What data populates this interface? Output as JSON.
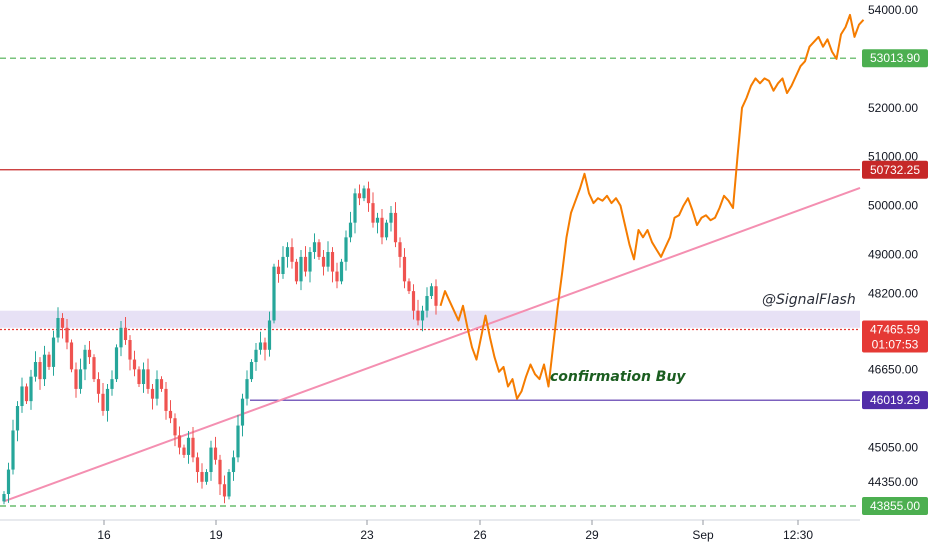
{
  "chart_data": {
    "type": "line",
    "symbol_note": "candlestick price chart with orange projected path",
    "y_axis": {
      "ticks": [
        "54000.00",
        "52000.00",
        "51000.00",
        "50000.00",
        "49000.00",
        "48200.00",
        "46650.00",
        "45050.00",
        "44350.00"
      ],
      "tick_values": [
        54000,
        52000,
        51000,
        50000,
        49000,
        48200,
        46650,
        45050,
        44350
      ],
      "ylim": [
        43800,
        54200
      ]
    },
    "x_axis": {
      "ticks": [
        "16",
        "19",
        "23",
        "26",
        "29",
        "Sep",
        "12:30"
      ]
    },
    "price_levels": [
      {
        "value": 53013.9,
        "label": "53013.90",
        "color": "#4caf50",
        "style": "dashed"
      },
      {
        "value": 50732.25,
        "label": "50732.25",
        "color": "#c62828",
        "style": "solid"
      },
      {
        "value": 47465.59,
        "label": "47465.59",
        "timer": "01:07:53",
        "color": "#e53935",
        "style": "dotted"
      },
      {
        "value": 46019.29,
        "label": "46019.29",
        "color": "#512da8",
        "style": "solid"
      },
      {
        "value": 43855.0,
        "label": "43855.00",
        "color": "#4caf50",
        "style": "dashed"
      }
    ],
    "zone": {
      "y0": 47500,
      "y1": 47850,
      "color": "#e1d9f2"
    },
    "trendline": {
      "color": "#f48fb1",
      "p0": {
        "i": 0,
        "y": 43950
      },
      "p1": {
        "i": 230,
        "y": 51700
      }
    },
    "candles": {
      "seed_closes": [
        44100,
        44600,
        45400,
        45900,
        46300,
        46000,
        46500,
        46800,
        46450,
        46950,
        46700,
        47300,
        47700,
        47500,
        47200,
        46650,
        46250,
        46650,
        47050,
        46900,
        46450,
        46150,
        45800,
        46250,
        46450,
        47100,
        47500,
        47250,
        46850,
        46650,
        46350,
        46650,
        46250,
        46050,
        46450,
        46250,
        45800,
        45650,
        45300,
        45050,
        44900,
        45250,
        44850,
        44550,
        44350,
        44550,
        45050,
        44800,
        44300,
        44050,
        44550,
        44850,
        45500,
        46050,
        46450,
        46800,
        47050,
        47200,
        47050,
        47650,
        48750,
        48600,
        48950,
        49150,
        48850,
        48450,
        48950,
        48650,
        49050,
        49250,
        48950,
        48750,
        49050,
        48650,
        48450,
        48850,
        49350,
        49650,
        50250,
        50150,
        50350,
        50050,
        49650,
        49750,
        49350,
        49650,
        49850,
        49250,
        48950,
        48450,
        48250,
        47850,
        47650,
        47850,
        48150,
        48350,
        47950
      ]
    },
    "projection": {
      "color": "#f57c00",
      "points": [
        [
          97,
          47950
        ],
        [
          98,
          48250
        ],
        [
          99,
          48050
        ],
        [
          100,
          47850
        ],
        [
          101,
          47650
        ],
        [
          102,
          47950
        ],
        [
          103,
          47500
        ],
        [
          104,
          47100
        ],
        [
          105,
          46850
        ],
        [
          106,
          47300
        ],
        [
          107,
          47750
        ],
        [
          108,
          47300
        ],
        [
          109,
          46900
        ],
        [
          110,
          46600
        ],
        [
          111,
          46700
        ],
        [
          112,
          46300
        ],
        [
          113,
          46450
        ],
        [
          114,
          46050
        ],
        [
          115,
          46200
        ],
        [
          116,
          46500
        ],
        [
          117,
          46750
        ],
        [
          118,
          46550
        ],
        [
          119,
          46450
        ],
        [
          120,
          46750
        ],
        [
          121,
          46300
        ],
        [
          122,
          47100
        ],
        [
          123,
          47900
        ],
        [
          124,
          48600
        ],
        [
          125,
          49350
        ],
        [
          126,
          49850
        ],
        [
          127,
          50100
        ],
        [
          128,
          50350
        ],
        [
          129,
          50650
        ],
        [
          130,
          50250
        ],
        [
          131,
          50050
        ],
        [
          132,
          50150
        ],
        [
          133,
          50100
        ],
        [
          134,
          50200
        ],
        [
          135,
          50050
        ],
        [
          136,
          50150
        ],
        [
          137,
          50000
        ],
        [
          138,
          49600
        ],
        [
          139,
          49200
        ],
        [
          140,
          48900
        ],
        [
          141,
          49500
        ],
        [
          142,
          49350
        ],
        [
          143,
          49500
        ],
        [
          144,
          49250
        ],
        [
          145,
          49100
        ],
        [
          146,
          48950
        ],
        [
          147,
          49150
        ],
        [
          148,
          49350
        ],
        [
          149,
          49750
        ],
        [
          150,
          49800
        ],
        [
          151,
          50000
        ],
        [
          152,
          50150
        ],
        [
          153,
          49900
        ],
        [
          154,
          49600
        ],
        [
          155,
          49750
        ],
        [
          156,
          49800
        ],
        [
          157,
          49700
        ],
        [
          158,
          49750
        ],
        [
          159,
          49950
        ],
        [
          160,
          50200
        ],
        [
          161,
          50100
        ],
        [
          162,
          49950
        ],
        [
          163,
          51000
        ],
        [
          164,
          52000
        ],
        [
          165,
          52200
        ],
        [
          166,
          52450
        ],
        [
          167,
          52600
        ],
        [
          168,
          52500
        ],
        [
          169,
          52600
        ],
        [
          170,
          52550
        ],
        [
          171,
          52350
        ],
        [
          172,
          52500
        ],
        [
          173,
          52600
        ],
        [
          174,
          52300
        ],
        [
          175,
          52450
        ],
        [
          176,
          52650
        ],
        [
          177,
          52850
        ],
        [
          178,
          52950
        ],
        [
          179,
          53250
        ],
        [
          180,
          53350
        ],
        [
          181,
          53450
        ],
        [
          182,
          53250
        ],
        [
          183,
          53400
        ],
        [
          184,
          53150
        ],
        [
          185,
          53000
        ],
        [
          186,
          53500
        ],
        [
          187,
          53650
        ],
        [
          188,
          53900
        ],
        [
          189,
          53450
        ],
        [
          190,
          53700
        ],
        [
          191,
          53800
        ]
      ]
    },
    "annotations": [
      {
        "text": "@SignalFlash",
        "color": "#2a2e39",
        "style": "italic"
      },
      {
        "text": "confirmation Buy",
        "color": "#1b5e20",
        "style": "bold-italic"
      }
    ]
  }
}
